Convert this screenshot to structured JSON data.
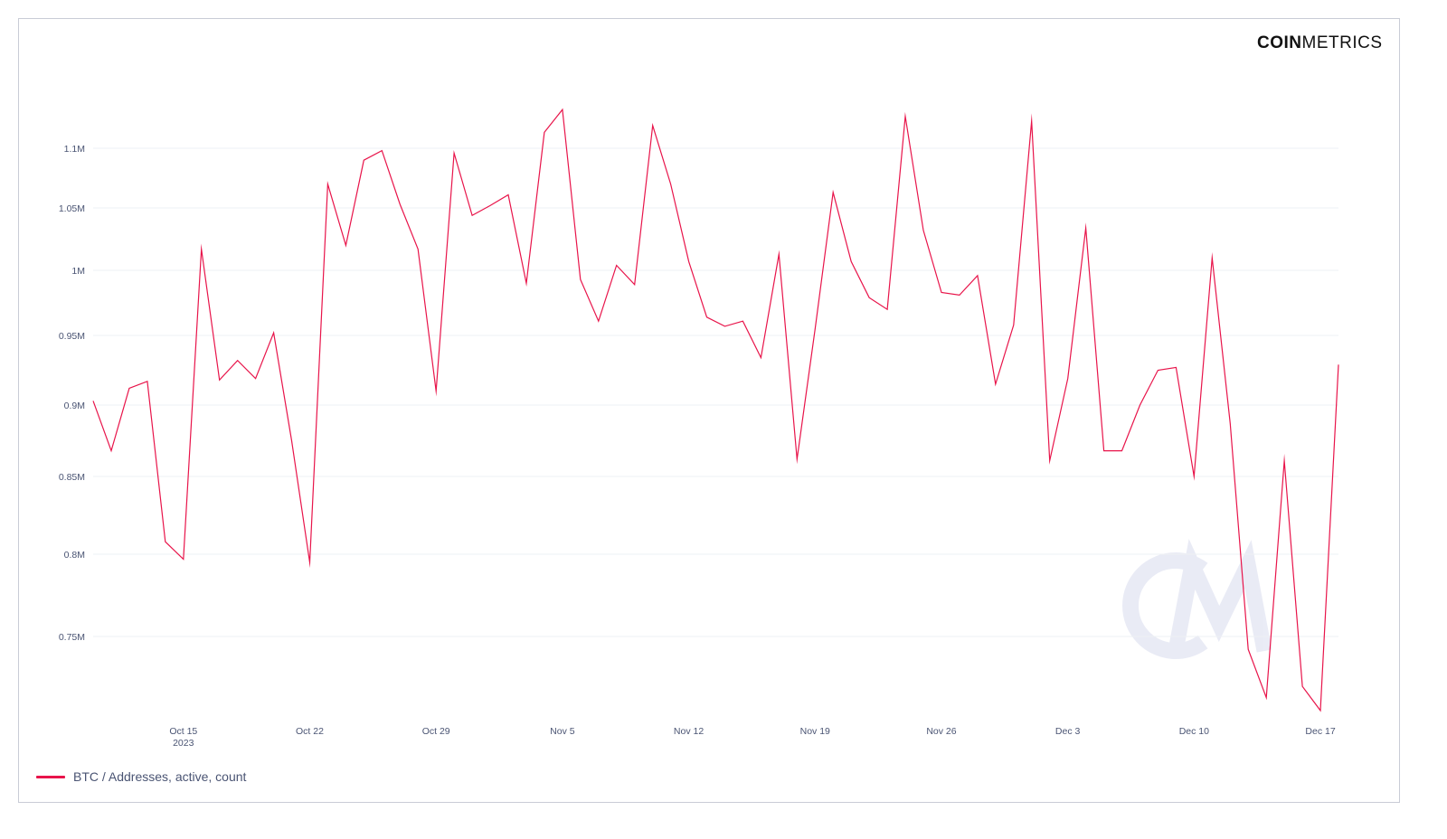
{
  "brand": {
    "bold": "COIN",
    "light": "METRICS",
    "accent": "#e8144a"
  },
  "chart_data": {
    "type": "line",
    "title": "",
    "xlabel": "",
    "ylabel": "",
    "ylim": [
      700000,
      1150000
    ],
    "yticks": [
      {
        "value": 750000,
        "label": "0.75M"
      },
      {
        "value": 800000,
        "label": "0.8M"
      },
      {
        "value": 850000,
        "label": "0.85M"
      },
      {
        "value": 900000,
        "label": "0.9M"
      },
      {
        "value": 950000,
        "label": "0.95M"
      },
      {
        "value": 1000000,
        "label": "1M"
      },
      {
        "value": 1050000,
        "label": "1.05M"
      },
      {
        "value": 1100000,
        "label": "1.1M"
      }
    ],
    "xticks": [
      {
        "date": "2023-10-15",
        "label": "Oct 15",
        "sublabel": "2023"
      },
      {
        "date": "2023-10-22",
        "label": "Oct 22"
      },
      {
        "date": "2023-10-29",
        "label": "Oct 29"
      },
      {
        "date": "2023-11-05",
        "label": "Nov 5"
      },
      {
        "date": "2023-11-12",
        "label": "Nov 12"
      },
      {
        "date": "2023-11-19",
        "label": "Nov 19"
      },
      {
        "date": "2023-11-26",
        "label": "Nov 26"
      },
      {
        "date": "2023-12-03",
        "label": "Dec 3"
      },
      {
        "date": "2023-12-10",
        "label": "Dec 10"
      },
      {
        "date": "2023-12-17",
        "label": "Dec 17"
      }
    ],
    "grid": true,
    "legend_position": "bottom-left",
    "series": [
      {
        "name": "BTC / Addresses, active, count",
        "color": "#e8144a",
        "x": [
          "2023-10-10",
          "2023-10-11",
          "2023-10-12",
          "2023-10-13",
          "2023-10-14",
          "2023-10-15",
          "2023-10-16",
          "2023-10-17",
          "2023-10-18",
          "2023-10-19",
          "2023-10-20",
          "2023-10-21",
          "2023-10-22",
          "2023-10-23",
          "2023-10-24",
          "2023-10-25",
          "2023-10-26",
          "2023-10-27",
          "2023-10-28",
          "2023-10-29",
          "2023-10-30",
          "2023-10-31",
          "2023-11-01",
          "2023-11-02",
          "2023-11-03",
          "2023-11-04",
          "2023-11-05",
          "2023-11-06",
          "2023-11-07",
          "2023-11-08",
          "2023-11-09",
          "2023-11-10",
          "2023-11-11",
          "2023-11-12",
          "2023-11-13",
          "2023-11-14",
          "2023-11-15",
          "2023-11-16",
          "2023-11-17",
          "2023-11-18",
          "2023-11-19",
          "2023-11-20",
          "2023-11-21",
          "2023-11-22",
          "2023-11-23",
          "2023-11-24",
          "2023-11-25",
          "2023-11-26",
          "2023-11-27",
          "2023-11-28",
          "2023-11-29",
          "2023-11-30",
          "2023-12-01",
          "2023-12-02",
          "2023-12-03",
          "2023-12-04",
          "2023-12-05",
          "2023-12-06",
          "2023-12-07",
          "2023-12-08",
          "2023-12-09",
          "2023-12-10",
          "2023-12-11",
          "2023-12-12",
          "2023-12-13",
          "2023-12-14",
          "2023-12-15",
          "2023-12-16",
          "2023-12-17",
          "2023-12-18"
        ],
        "values": [
          903000,
          868000,
          912000,
          917000,
          808000,
          797000,
          1017000,
          918000,
          932000,
          919000,
          952000,
          875000,
          795000,
          1070000,
          1020000,
          1090000,
          1098000,
          1053000,
          1017000,
          910000,
          1096000,
          1044000,
          1052000,
          1061000,
          990000,
          1114000,
          1134000,
          993000,
          961000,
          1004000,
          989000,
          1120000,
          1070000,
          1007000,
          964000,
          957000,
          961000,
          934000,
          1013000,
          862000,
          955000,
          1063000,
          1007000,
          979000,
          970000,
          1128000,
          1032000,
          983000,
          981000,
          996000,
          915000,
          958000,
          1124000,
          861000,
          919000,
          1034000,
          868000,
          868000,
          900000,
          925000,
          927000,
          850000,
          1010000,
          887000,
          742000,
          712000,
          861000,
          719000,
          704000,
          929000
        ]
      }
    ]
  }
}
